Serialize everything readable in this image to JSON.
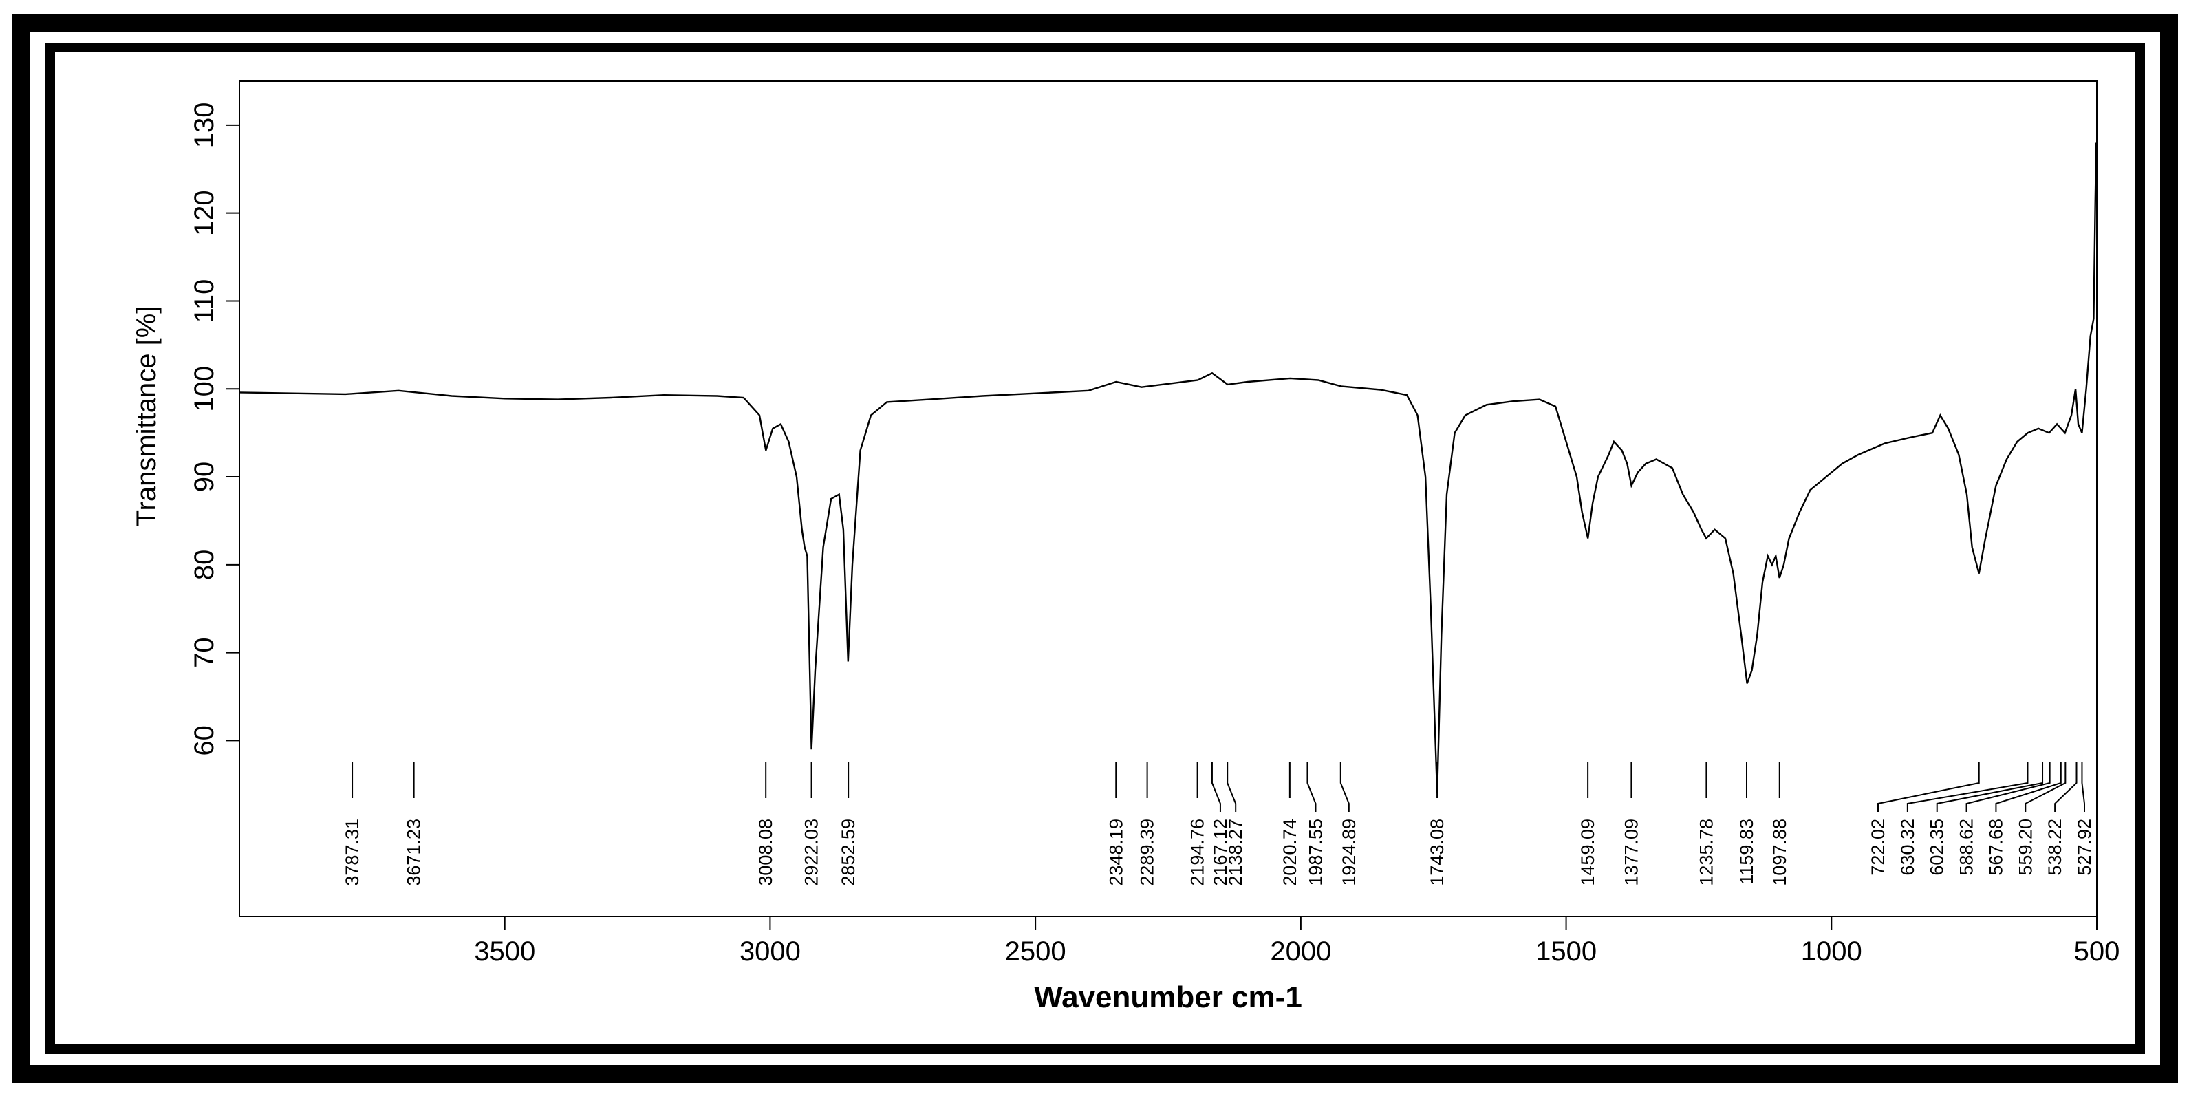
{
  "chart_data": {
    "type": "line",
    "title": "",
    "xlabel": "Wavenumber cm-1",
    "ylabel": "Transmittance [%]",
    "xlim": [
      4000,
      500
    ],
    "ylim": [
      40,
      135
    ],
    "x_ticks": [
      3500,
      3000,
      2500,
      2000,
      1500,
      1000,
      500
    ],
    "y_ticks": [
      60,
      70,
      80,
      90,
      100,
      110,
      120,
      130
    ],
    "grid": false,
    "series": [
      {
        "points": [
          [
            4000,
            99.6
          ],
          [
            3900,
            99.5
          ],
          [
            3800,
            99.4
          ],
          [
            3700,
            99.8
          ],
          [
            3600,
            99.2
          ],
          [
            3500,
            98.9
          ],
          [
            3400,
            98.8
          ],
          [
            3300,
            99.0
          ],
          [
            3200,
            99.3
          ],
          [
            3100,
            99.2
          ],
          [
            3050,
            99.0
          ],
          [
            3020,
            97.0
          ],
          [
            3008,
            93.0
          ],
          [
            2995,
            95.5
          ],
          [
            2980,
            96.0
          ],
          [
            2965,
            94.0
          ],
          [
            2950,
            90.0
          ],
          [
            2940,
            84.0
          ],
          [
            2935,
            82.0
          ],
          [
            2930,
            81.0
          ],
          [
            2922,
            59.0
          ],
          [
            2915,
            68.0
          ],
          [
            2900,
            82.0
          ],
          [
            2885,
            87.5
          ],
          [
            2870,
            88.0
          ],
          [
            2862,
            84.0
          ],
          [
            2853,
            69.0
          ],
          [
            2845,
            80.0
          ],
          [
            2830,
            93.0
          ],
          [
            2810,
            97.0
          ],
          [
            2780,
            98.5
          ],
          [
            2700,
            98.8
          ],
          [
            2600,
            99.2
          ],
          [
            2500,
            99.5
          ],
          [
            2400,
            99.8
          ],
          [
            2348,
            100.8
          ],
          [
            2300,
            100.2
          ],
          [
            2194,
            101.0
          ],
          [
            2167,
            101.8
          ],
          [
            2138,
            100.5
          ],
          [
            2100,
            100.8
          ],
          [
            2020,
            101.2
          ],
          [
            1967,
            101.0
          ],
          [
            1924,
            100.3
          ],
          [
            1850,
            99.9
          ],
          [
            1800,
            99.3
          ],
          [
            1780,
            97.0
          ],
          [
            1765,
            90.0
          ],
          [
            1755,
            75.0
          ],
          [
            1743,
            54.0
          ],
          [
            1735,
            72.0
          ],
          [
            1725,
            88.0
          ],
          [
            1710,
            95.0
          ],
          [
            1690,
            97.0
          ],
          [
            1650,
            98.2
          ],
          [
            1600,
            98.6
          ],
          [
            1550,
            98.8
          ],
          [
            1520,
            98.0
          ],
          [
            1500,
            94.0
          ],
          [
            1480,
            90.0
          ],
          [
            1470,
            86.0
          ],
          [
            1459,
            83.0
          ],
          [
            1450,
            87.0
          ],
          [
            1440,
            90.0
          ],
          [
            1420,
            92.5
          ],
          [
            1410,
            94.0
          ],
          [
            1395,
            93.0
          ],
          [
            1385,
            91.5
          ],
          [
            1377,
            89.0
          ],
          [
            1365,
            90.5
          ],
          [
            1350,
            91.5
          ],
          [
            1330,
            92.0
          ],
          [
            1300,
            91.0
          ],
          [
            1280,
            88.0
          ],
          [
            1260,
            86.0
          ],
          [
            1245,
            84.0
          ],
          [
            1236,
            83.0
          ],
          [
            1220,
            84.0
          ],
          [
            1200,
            83.0
          ],
          [
            1185,
            79.0
          ],
          [
            1170,
            72.0
          ],
          [
            1159,
            66.5
          ],
          [
            1150,
            68.0
          ],
          [
            1140,
            72.0
          ],
          [
            1130,
            78.0
          ],
          [
            1120,
            81.0
          ],
          [
            1112,
            80.0
          ],
          [
            1105,
            81.0
          ],
          [
            1098,
            78.5
          ],
          [
            1090,
            80.0
          ],
          [
            1080,
            83.0
          ],
          [
            1060,
            86.0
          ],
          [
            1040,
            88.5
          ],
          [
            1000,
            90.5
          ],
          [
            980,
            91.5
          ],
          [
            950,
            92.5
          ],
          [
            900,
            93.8
          ],
          [
            850,
            94.5
          ],
          [
            810,
            95.0
          ],
          [
            795,
            97.0
          ],
          [
            780,
            95.5
          ],
          [
            760,
            92.5
          ],
          [
            745,
            88.0
          ],
          [
            735,
            82.0
          ],
          [
            722,
            79.0
          ],
          [
            710,
            83.0
          ],
          [
            700,
            86.0
          ],
          [
            690,
            89.0
          ],
          [
            670,
            92.0
          ],
          [
            650,
            94.0
          ],
          [
            630,
            95.0
          ],
          [
            610,
            95.5
          ],
          [
            590,
            95.0
          ],
          [
            575,
            96.0
          ],
          [
            560,
            95.0
          ],
          [
            548,
            97.0
          ],
          [
            540,
            100.0
          ],
          [
            535,
            96.0
          ],
          [
            528,
            95.0
          ],
          [
            520,
            100.0
          ],
          [
            512,
            106.0
          ],
          [
            506,
            108.0
          ],
          [
            503,
            121.0
          ],
          [
            501,
            128.0
          ]
        ]
      }
    ],
    "peak_labels": [
      {
        "x": 3787.31,
        "text": "3787.31"
      },
      {
        "x": 3671.23,
        "text": "3671.23"
      },
      {
        "x": 3008.08,
        "text": "3008.08"
      },
      {
        "x": 2922.03,
        "text": "2922.03"
      },
      {
        "x": 2852.59,
        "text": "2852.59"
      },
      {
        "x": 2348.19,
        "text": "2348.19"
      },
      {
        "x": 2289.39,
        "text": "2289.39"
      },
      {
        "x": 2194.76,
        "text": "2194.76"
      },
      {
        "x": 2167.12,
        "text": "2167.12"
      },
      {
        "x": 2138.27,
        "text": "2138.27"
      },
      {
        "x": 2020.74,
        "text": "2020.74"
      },
      {
        "x": 1987.55,
        "text": "1987.55"
      },
      {
        "x": 1924.89,
        "text": "1924.89"
      },
      {
        "x": 1743.08,
        "text": "1743.08"
      },
      {
        "x": 1459.09,
        "text": "1459.09"
      },
      {
        "x": 1377.09,
        "text": "1377.09"
      },
      {
        "x": 1235.78,
        "text": "1235.78"
      },
      {
        "x": 1159.83,
        "text": "1159.83"
      },
      {
        "x": 1097.88,
        "text": "1097.88"
      },
      {
        "x": 722.02,
        "text": "722.02"
      },
      {
        "x": 630.32,
        "text": "630.32"
      },
      {
        "x": 602.35,
        "text": "602.35"
      },
      {
        "x": 588.62,
        "text": "588.62"
      },
      {
        "x": 567.68,
        "text": "567.68"
      },
      {
        "x": 559.2,
        "text": "559.20"
      },
      {
        "x": 538.22,
        "text": "538.22"
      },
      {
        "x": 527.92,
        "text": "527.92"
      }
    ]
  }
}
